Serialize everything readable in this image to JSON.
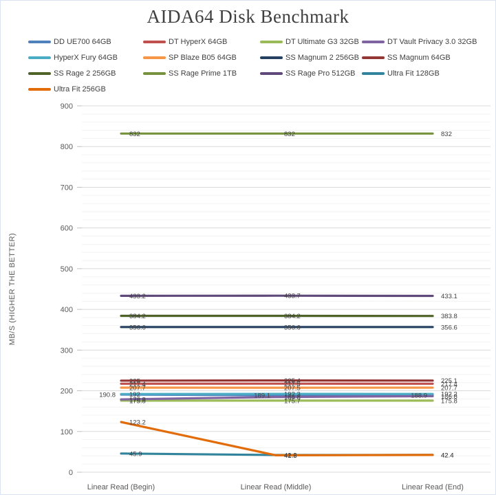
{
  "title": "AIDA64 Disk Benchmark",
  "accent_colors": {
    "title_text": "#3f3f3f",
    "axis_text": "#595959",
    "data_label_text": "#404040",
    "major_gridline": "#d9d9d9",
    "minor_gridline": "#f2f2f2",
    "tick_mark": "#bfbfbf"
  },
  "chart_data": {
    "type": "line",
    "title": "AIDA64 Disk Benchmark",
    "xlabel": "",
    "ylabel": "MB/S (HIGHER THE BETTER)",
    "ylim": [
      0,
      900
    ],
    "y_major_step": 100,
    "y_minor_step": 20,
    "y_ticks": [
      0,
      100,
      200,
      300,
      400,
      500,
      600,
      700,
      800,
      900
    ],
    "grid": "on",
    "legend_position": "top",
    "categories": [
      "Linear Read (Begin)",
      "Linear Read (Middle)",
      "Linear Read (End)"
    ],
    "series": [
      {
        "name": "DD UE700 64GB",
        "color": "#4F81BD",
        "values": [
          190.8,
          189.1,
          188.9
        ],
        "label_side": "left"
      },
      {
        "name": "DT HyperX 64GB",
        "color": "#C0504D",
        "values": [
          217.4,
          217.5,
          217.4
        ],
        "label_side": "right"
      },
      {
        "name": "DT Ultimate G3 32GB",
        "color": "#9BBB59",
        "values": [
          175.8,
          175.7,
          175.8
        ],
        "label_side": "right"
      },
      {
        "name": "DT Vault Privacy 3.0 32GB",
        "color": "#8064A2",
        "values": [
          178.8,
          184.8,
          186.8
        ],
        "label_side": "right"
      },
      {
        "name": "HyperX Fury 64GB",
        "color": "#4BACC6",
        "values": [
          192,
          192.3,
          192.2
        ],
        "label_side": "right"
      },
      {
        "name": "SP Blaze B05 64GB",
        "color": "#F79646",
        "values": [
          207.7,
          207.5,
          207.7
        ],
        "label_side": "right"
      },
      {
        "name": "SS Magnum 2 256GB",
        "color": "#254061",
        "values": [
          356.6,
          356.6,
          356.6
        ],
        "label_side": "right"
      },
      {
        "name": "SS Magnum 64GB",
        "color": "#943634",
        "values": [
          225,
          225.4,
          225.1
        ],
        "label_side": "right"
      },
      {
        "name": "SS Rage 2 256GB",
        "color": "#4F6228",
        "values": [
          384.2,
          384.2,
          383.8
        ],
        "label_side": "right"
      },
      {
        "name": "SS Rage Prime 1TB",
        "color": "#76923C",
        "values": [
          832,
          832,
          832
        ],
        "label_side": "right"
      },
      {
        "name": "SS Rage Pro 512GB",
        "color": "#5F497A",
        "values": [
          433.2,
          433.7,
          433.1
        ],
        "label_side": "right"
      },
      {
        "name": "Ultra Fit 128GB",
        "color": "#31849B",
        "values": [
          45.9,
          42.2,
          42.4
        ],
        "label_side": "right"
      },
      {
        "name": "Ultra Fit 256GB",
        "color": "#E36C0A",
        "values": [
          123.2,
          41.5,
          42.4
        ],
        "label_side": "right"
      }
    ]
  }
}
